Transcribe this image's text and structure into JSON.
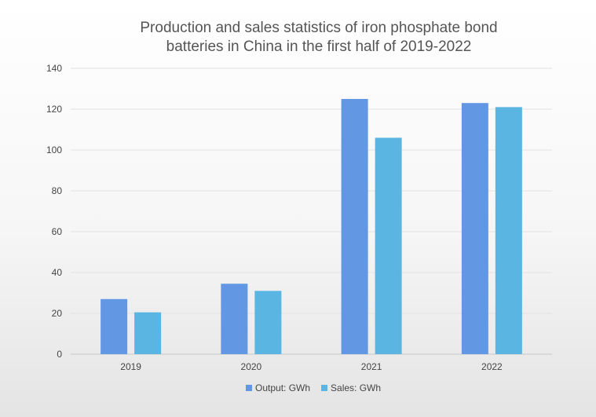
{
  "chart_data": {
    "type": "bar",
    "title": "Production and sales statistics of iron phosphate bond batteries in China in the first half of 2019-2022",
    "title_lines": [
      "Production and sales statistics of iron phosphate bond",
      "batteries in China in the first half of 2019-2022"
    ],
    "categories": [
      "2019",
      "2020",
      "2021",
      "2022"
    ],
    "series": [
      {
        "name": "Output: GWh",
        "color": "#6297E3",
        "values": [
          27,
          34.5,
          125,
          123
        ]
      },
      {
        "name": "Sales: GWh",
        "color": "#5BB5E3",
        "values": [
          20.5,
          31,
          106,
          121
        ]
      }
    ],
    "ylim": [
      0,
      140
    ],
    "yticks": [
      0,
      20,
      40,
      60,
      80,
      100,
      120,
      140
    ],
    "xlabel": "",
    "ylabel": "",
    "grid": true,
    "legend_position": "bottom"
  }
}
